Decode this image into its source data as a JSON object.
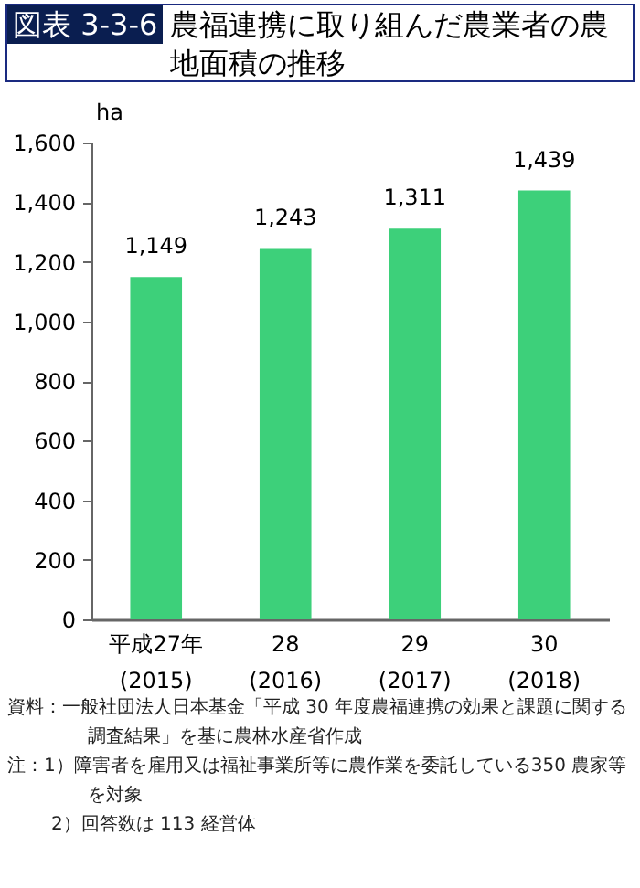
{
  "chart_data": {
    "type": "bar",
    "subtitle": "図表 3-3-6",
    "title": "農福連携に取り組んだ農業者の農地面積の推移",
    "ylabel": "ha",
    "categories": [
      "平成27年\n(2015)",
      "28\n(2016)",
      "29\n(2017)",
      "30\n(2018)"
    ],
    "values": [
      1149,
      1243,
      1311,
      1439
    ],
    "color": "#3dd07a",
    "value_labels": [
      "1,149",
      "1,243",
      "1,311",
      "1,439"
    ],
    "grid": false,
    "ylim": [
      0,
      1600
    ],
    "yticks": [
      0,
      200,
      400,
      600,
      800,
      {
        "value": 1000,
        "label": "1,000"
      },
      {
        "value": 1200,
        "label": "1,200"
      },
      {
        "value": 1400,
        "label": "1,400"
      },
      {
        "value": 1600,
        "label": "1,600"
      }
    ],
    "annotations": [
      "資料：一般社団法人日本基金「平成 30 年度農福連携の効果と課題に関する調査結果」を基に農林水産省作成",
      "注：1）障害者を雇用又は福祉事業所等に農作業を委託している350 農家等を対象",
      "2）回答数は 113 経営体"
    ]
  }
}
